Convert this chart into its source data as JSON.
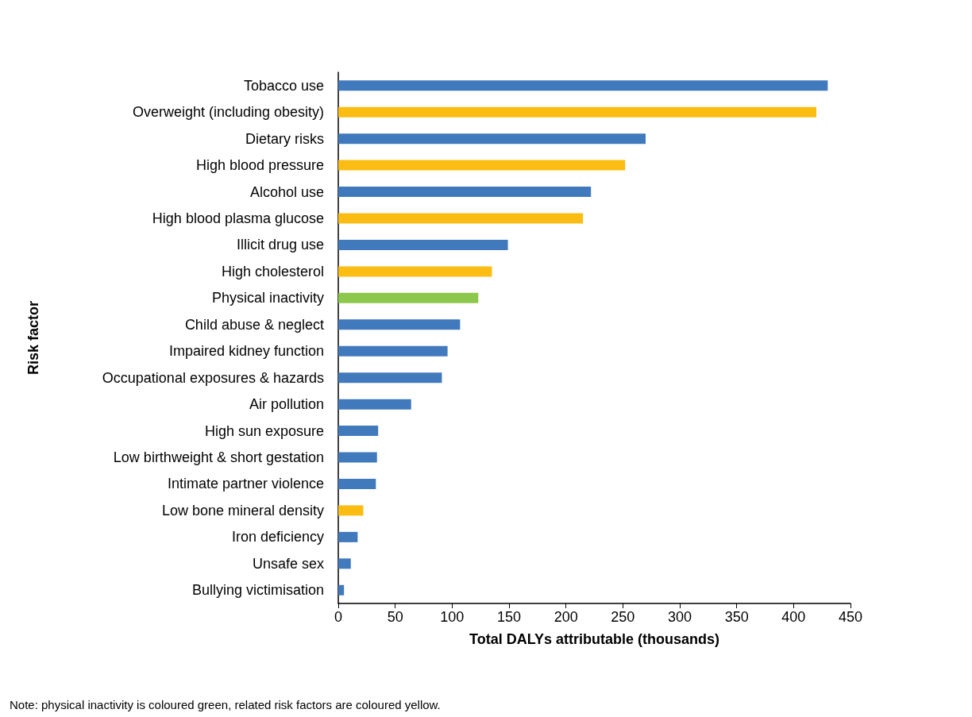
{
  "chart_data": {
    "type": "bar",
    "orientation": "horizontal",
    "xlabel": "Total DALYs attributable (thousands)",
    "ylabel": "Risk factor",
    "categories": [
      "Tobacco use",
      "Overweight (including obesity)",
      "Dietary risks",
      "High blood pressure",
      "Alcohol use",
      "High blood plasma glucose",
      "Illicit drug use",
      "High cholesterol",
      "Physical inactivity",
      "Child abuse & neglect",
      "Impaired kidney function",
      "Occupational exposures & hazards",
      "Air pollution",
      "High sun exposure",
      "Low birthweight & short gestation",
      "Intimate partner violence",
      "Low bone mineral density",
      "Iron deficiency",
      "Unsafe sex",
      "Bullying victimisation"
    ],
    "values": [
      430,
      420,
      270,
      252,
      222,
      215,
      149,
      135,
      123,
      107,
      96,
      91,
      64,
      35,
      34,
      33,
      22,
      17,
      11,
      5
    ],
    "colors": [
      "#4179bd",
      "#fbbd13",
      "#4179bd",
      "#fbbd13",
      "#4179bd",
      "#fbbd13",
      "#4179bd",
      "#fbbd13",
      "#8cc84b",
      "#4179bd",
      "#4179bd",
      "#4179bd",
      "#4179bd",
      "#4179bd",
      "#4179bd",
      "#4179bd",
      "#fbbd13",
      "#4179bd",
      "#4179bd",
      "#4179bd"
    ],
    "xlim": [
      0,
      450
    ],
    "xticks": [
      0,
      50,
      100,
      150,
      200,
      250,
      300,
      350,
      400,
      450
    ],
    "grid": false,
    "annotations": [
      "Note: physical inactivity is coloured green, related risk factors are coloured yellow."
    ]
  }
}
